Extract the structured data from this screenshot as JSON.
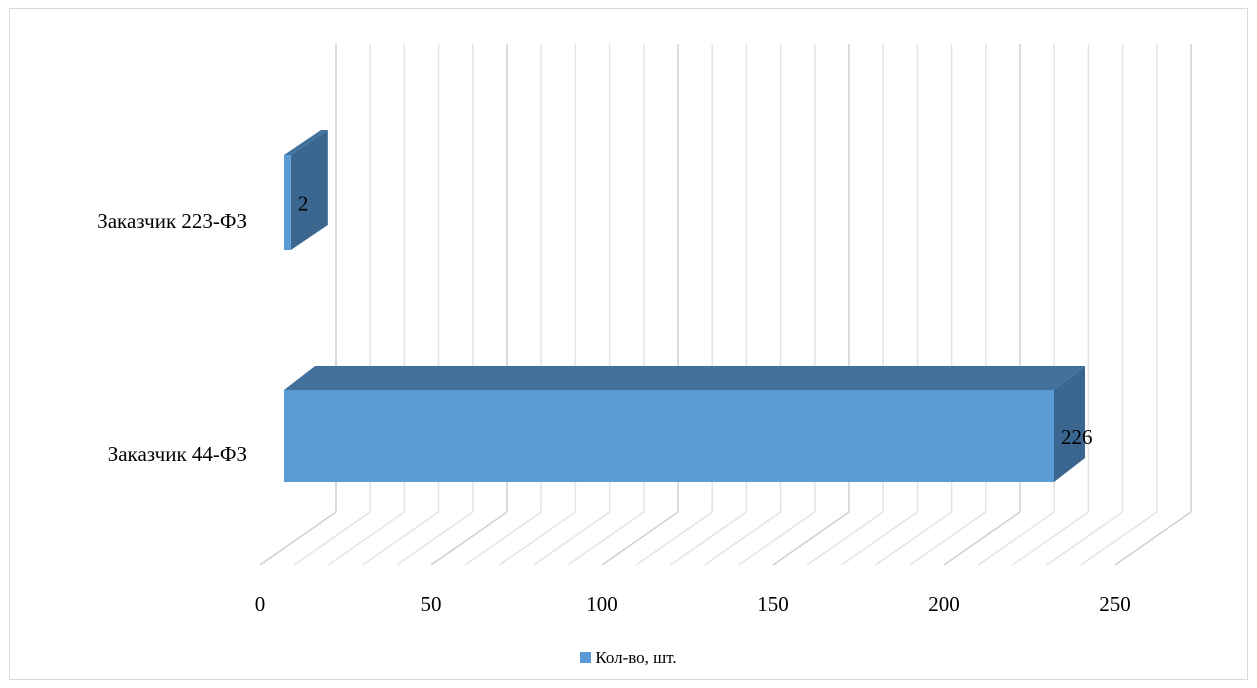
{
  "chart_data": {
    "type": "bar",
    "orientation": "horizontal",
    "style": "3d",
    "categories": [
      "Заказчик 223-ФЗ",
      "Заказчик 44-ФЗ"
    ],
    "series": [
      {
        "name": "Кол-во, шт.",
        "values": [
          2,
          226
        ]
      }
    ],
    "x_ticks": [
      "0",
      "50",
      "100",
      "150",
      "200",
      "250"
    ],
    "xlim": [
      0,
      250
    ],
    "grid": true,
    "legend_position": "bottom",
    "data_labels": [
      "2",
      "226"
    ],
    "colors": {
      "front": "#5b9bd5",
      "top": "#41719c",
      "side": "#3a6690",
      "grid": "#d9d9d9"
    }
  }
}
